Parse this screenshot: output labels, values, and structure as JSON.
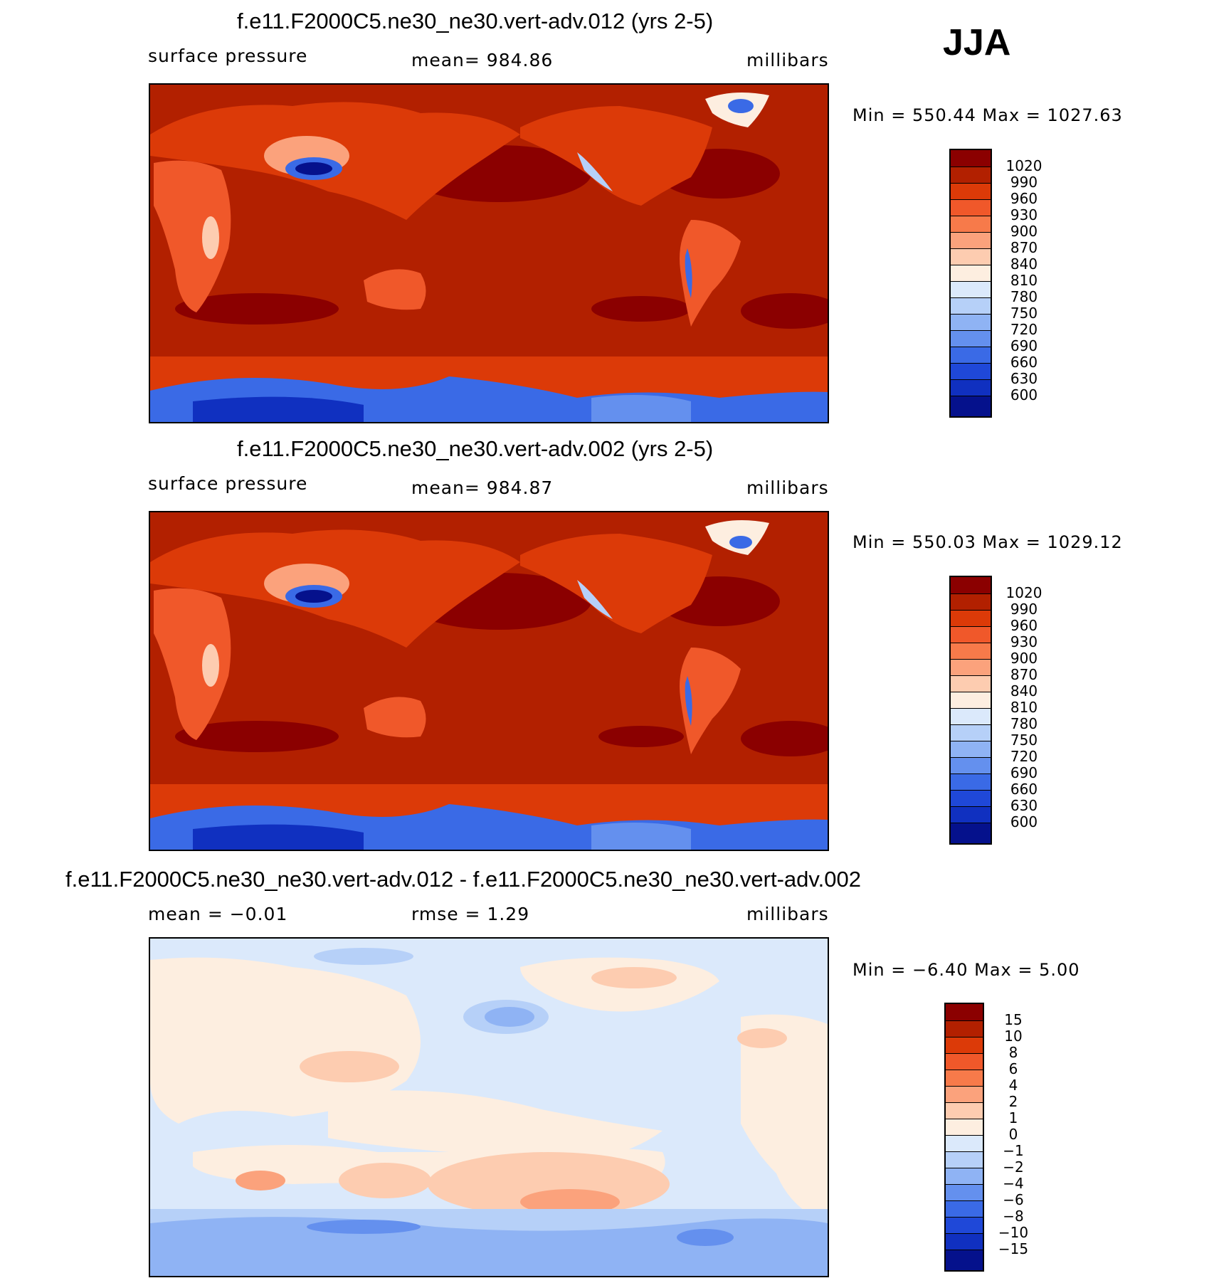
{
  "season": "JJA",
  "panels": [
    {
      "title": "f.e11.F2000C5.ne30_ne30.vert-adv.012 (yrs 2-5)",
      "left_label": "surface pressure",
      "center_label": "mean=  984.86",
      "right_label": "millibars",
      "minmax": "Min = 550.44 Max = 1027.63",
      "colorbar": {
        "colors": [
          "#8b0000",
          "#b22000",
          "#dc3a08",
          "#f0582a",
          "#f77a4a",
          "#fba27c",
          "#fdccb0",
          "#fdeee0",
          "#dbe9fb",
          "#b6d0f8",
          "#8fb3f4",
          "#6490ee",
          "#3a6ae6",
          "#1f48d8",
          "#1030c0",
          "#05118c"
        ],
        "labels": [
          "1020",
          "990",
          "960",
          "930",
          "900",
          "870",
          "840",
          "810",
          "780",
          "750",
          "720",
          "690",
          "660",
          "630",
          "600"
        ]
      }
    },
    {
      "title": "f.e11.F2000C5.ne30_ne30.vert-adv.002 (yrs 2-5)",
      "left_label": "surface pressure",
      "center_label": "mean=  984.87",
      "right_label": "millibars",
      "minmax": "Min = 550.03 Max = 1029.12",
      "colorbar": {
        "colors": [
          "#8b0000",
          "#b22000",
          "#dc3a08",
          "#f0582a",
          "#f77a4a",
          "#fba27c",
          "#fdccb0",
          "#fdeee0",
          "#dbe9fb",
          "#b6d0f8",
          "#8fb3f4",
          "#6490ee",
          "#3a6ae6",
          "#1f48d8",
          "#1030c0",
          "#05118c"
        ],
        "labels": [
          "1020",
          "990",
          "960",
          "930",
          "900",
          "870",
          "840",
          "810",
          "780",
          "750",
          "720",
          "690",
          "660",
          "630",
          "600"
        ]
      }
    },
    {
      "title": "f.e11.F2000C5.ne30_ne30.vert-adv.012 - f.e11.F2000C5.ne30_ne30.vert-adv.002",
      "left_label": "mean =   −0.01",
      "center_label": "rmse =    1.29",
      "right_label": "millibars",
      "minmax": "Min =  −6.40 Max =   5.00",
      "colorbar": {
        "colors": [
          "#8b0000",
          "#b22000",
          "#dc3a08",
          "#f0582a",
          "#f77a4a",
          "#fba27c",
          "#fdccb0",
          "#fdeee0",
          "#dbe9fb",
          "#b6d0f8",
          "#8fb3f4",
          "#6490ee",
          "#3a6ae6",
          "#1f48d8",
          "#1030c0",
          "#05118c"
        ],
        "labels": [
          "15",
          "10",
          "8",
          "6",
          "4",
          "2",
          "1",
          "0",
          "−1",
          "−2",
          "−4",
          "−6",
          "−8",
          "−10",
          "−15"
        ]
      }
    }
  ],
  "chart_data": [
    {
      "type": "heatmap",
      "title": "f.e11.F2000C5.ne30_ne30.vert-adv.012 (yrs 2-5)",
      "variable": "surface pressure",
      "units": "millibars",
      "mean": 984.86,
      "min": 550.44,
      "max": 1027.63,
      "levels": [
        600,
        630,
        660,
        690,
        720,
        750,
        780,
        810,
        840,
        870,
        900,
        930,
        960,
        990,
        1020
      ]
    },
    {
      "type": "heatmap",
      "title": "f.e11.F2000C5.ne30_ne30.vert-adv.002 (yrs 2-5)",
      "variable": "surface pressure",
      "units": "millibars",
      "mean": 984.87,
      "min": 550.03,
      "max": 1029.12,
      "levels": [
        600,
        630,
        660,
        690,
        720,
        750,
        780,
        810,
        840,
        870,
        900,
        930,
        960,
        990,
        1020
      ]
    },
    {
      "type": "heatmap",
      "title": "f.e11.F2000C5.ne30_ne30.vert-adv.012 - f.e11.F2000C5.ne30_ne30.vert-adv.002",
      "units": "millibars",
      "mean": -0.01,
      "rmse": 1.29,
      "min": -6.4,
      "max": 5.0,
      "levels": [
        -15,
        -10,
        -8,
        -6,
        -4,
        -2,
        -1,
        0,
        1,
        2,
        4,
        6,
        8,
        10,
        15
      ]
    }
  ]
}
